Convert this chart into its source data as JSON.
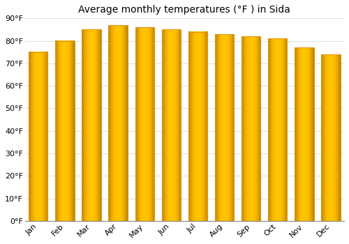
{
  "title": "Average monthly temperatures (°F ) in Sida",
  "months": [
    "Jan",
    "Feb",
    "Mar",
    "Apr",
    "May",
    "Jun",
    "Jul",
    "Aug",
    "Sep",
    "Oct",
    "Nov",
    "Dec"
  ],
  "values": [
    75,
    80,
    85,
    87,
    86,
    85,
    84,
    83,
    82,
    81,
    77,
    74
  ],
  "bar_color_center": "#FFB800",
  "bar_color_edge": "#E8930A",
  "background_color": "#FFFFFF",
  "grid_color": "#E0E0E0",
  "ylim": [
    0,
    90
  ],
  "yticks": [
    0,
    10,
    20,
    30,
    40,
    50,
    60,
    70,
    80,
    90
  ],
  "title_fontsize": 10,
  "tick_fontsize": 8,
  "font_family": "DejaVu Sans"
}
